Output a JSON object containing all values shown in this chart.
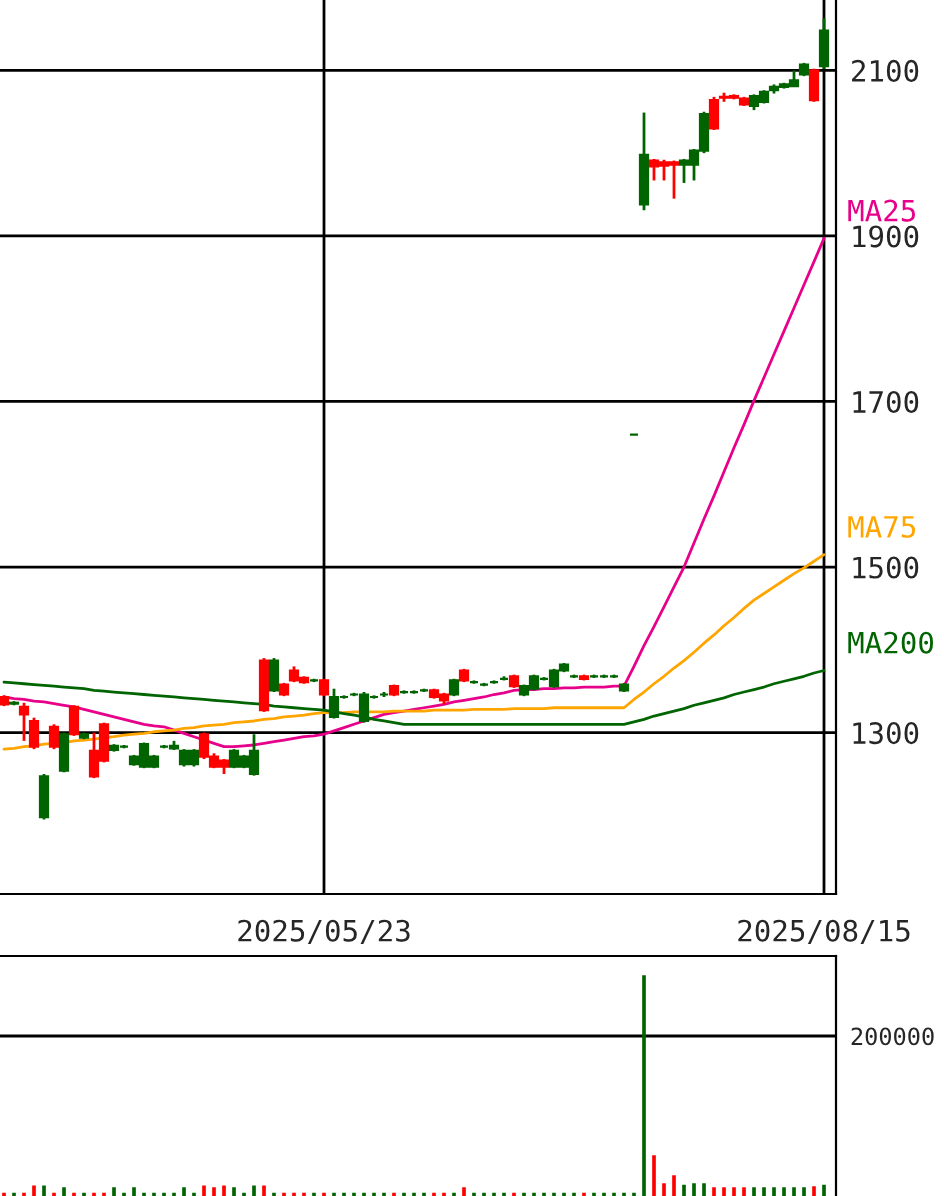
{
  "chart_data": [
    {
      "type": "candlestick",
      "categories": [
        null,
        null,
        null,
        null,
        null,
        null,
        null,
        null,
        null,
        null,
        null,
        null,
        null,
        null,
        null,
        null,
        null,
        null,
        null,
        null,
        null,
        null,
        null,
        null,
        null,
        null,
        null,
        null,
        null,
        null,
        null,
        null,
        "2025/05/23",
        null,
        null,
        null,
        null,
        null,
        null,
        null,
        null,
        null,
        null,
        null,
        null,
        null,
        null,
        null,
        null,
        null,
        null,
        null,
        null,
        null,
        null,
        null,
        null,
        null,
        null,
        null,
        null,
        null,
        null,
        null,
        null,
        null,
        null,
        null,
        null,
        null,
        null,
        null,
        null,
        null,
        null,
        null,
        null,
        null,
        null,
        null,
        null,
        null,
        "2025/08/15"
      ],
      "ohlc": [
        [
          1334,
          1345,
          1332,
          1343
        ],
        [
          1336,
          1338,
          1333,
          1335
        ],
        [
          1322,
          1336,
          1290,
          1331
        ],
        [
          1283,
          1318,
          1280,
          1314
        ],
        [
          1247,
          1250,
          1195,
          1198
        ],
        [
          1283,
          1310,
          1280,
          1307
        ],
        [
          1298,
          1300,
          1252,
          1254
        ],
        [
          1298,
          1333,
          1296,
          1331
        ],
        [
          1298,
          1300,
          1292,
          1294
        ],
        [
          1247,
          1300,
          1245,
          1278
        ],
        [
          1266,
          1312,
          1264,
          1310
        ],
        [
          1284,
          1286,
          1277,
          1279
        ],
        [
          1283,
          1285,
          1281,
          1283
        ],
        [
          1271,
          1273,
          1260,
          1262
        ],
        [
          1286,
          1288,
          1257,
          1259
        ],
        [
          1271,
          1273,
          1257,
          1259
        ],
        [
          1283,
          1285,
          1281,
          1283
        ],
        [
          1284,
          1290,
          1279,
          1281
        ],
        [
          1278,
          1280,
          1259,
          1262
        ],
        [
          1278,
          1280,
          1259,
          1262
        ],
        [
          1271,
          1300,
          1268,
          1298
        ],
        [
          1259,
          1275,
          1257,
          1271
        ],
        [
          1259,
          1268,
          1250,
          1266
        ],
        [
          1278,
          1280,
          1257,
          1259
        ],
        [
          1271,
          1273,
          1257,
          1259
        ],
        [
          1278,
          1298,
          1248,
          1250
        ],
        [
          1327,
          1390,
          1325,
          1387
        ],
        [
          1387,
          1390,
          1349,
          1351
        ],
        [
          1346,
          1360,
          1344,
          1358
        ],
        [
          1363,
          1380,
          1361,
          1375
        ],
        [
          1361,
          1368,
          1359,
          1366
        ],
        [
          1363,
          1365,
          1361,
          1363
        ],
        [
          1346,
          1365,
          1344,
          1363
        ],
        [
          1343,
          1353,
          1317,
          1319
        ],
        [
          1343,
          1345,
          1341,
          1343
        ],
        [
          1346,
          1348,
          1344,
          1346
        ],
        [
          1346,
          1349,
          1312,
          1314
        ],
        [
          1343,
          1345,
          1341,
          1343
        ],
        [
          1346,
          1349,
          1343,
          1346
        ],
        [
          1346,
          1358,
          1344,
          1356
        ],
        [
          1349,
          1351,
          1347,
          1349
        ],
        [
          1349,
          1351,
          1347,
          1349
        ],
        [
          1351,
          1353,
          1349,
          1351
        ],
        [
          1343,
          1353,
          1341,
          1351
        ],
        [
          1339,
          1348,
          1334,
          1346
        ],
        [
          1363,
          1365,
          1344,
          1346
        ],
        [
          1363,
          1377,
          1361,
          1375
        ],
        [
          1361,
          1363,
          1359,
          1361
        ],
        [
          1358,
          1360,
          1356,
          1358
        ],
        [
          1361,
          1363,
          1359,
          1361
        ],
        [
          1365,
          1368,
          1363,
          1365
        ],
        [
          1356,
          1370,
          1354,
          1368
        ],
        [
          1356,
          1358,
          1344,
          1346
        ],
        [
          1368,
          1370,
          1351,
          1353
        ],
        [
          1365,
          1367,
          1363,
          1365
        ],
        [
          1375,
          1377,
          1354,
          1356
        ],
        [
          1382,
          1384,
          1373,
          1375
        ],
        [
          1368,
          1370,
          1366,
          1368
        ],
        [
          1365,
          1370,
          1363,
          1368
        ],
        [
          1368,
          1370,
          1366,
          1368
        ],
        [
          1368,
          1370,
          1366,
          1368
        ],
        [
          1368,
          1370,
          1366,
          1368
        ],
        [
          1358,
          1360,
          1349,
          1351
        ],
        [
          1660,
          1660,
          1660,
          1660
        ],
        [
          1998,
          2049,
          1931,
          1938
        ],
        [
          1984,
          1993,
          1967,
          1991
        ],
        [
          1985,
          1992,
          1967,
          1989
        ],
        [
          1986,
          1991,
          1945,
          1989
        ],
        [
          1991,
          1993,
          1964,
          1986
        ],
        [
          2003,
          2005,
          1967,
          1986
        ],
        [
          2047,
          2050,
          2000,
          2003
        ],
        [
          2030,
          2068,
          2028,
          2064
        ],
        [
          2067,
          2073,
          2062,
          2068
        ],
        [
          2067,
          2071,
          2065,
          2069
        ],
        [
          2059,
          2068,
          2057,
          2066
        ],
        [
          2069,
          2071,
          2052,
          2057
        ],
        [
          2074,
          2076,
          2060,
          2062
        ],
        [
          2080,
          2083,
          2072,
          2076
        ],
        [
          2083,
          2085,
          2078,
          2080
        ],
        [
          2088,
          2100,
          2080,
          2081
        ],
        [
          2107,
          2109,
          2093,
          2095
        ],
        [
          2064,
          2102,
          2062,
          2100
        ],
        [
          2148,
          2163,
          2102,
          2105
        ]
      ],
      "colors": [
        "#ff0000",
        "#006400",
        "#ff0000",
        "#ff0000",
        "#006400",
        "#ff0000",
        "#006400",
        "#ff0000",
        "#006400",
        "#ff0000",
        "#ff0000",
        "#006400",
        "#006400",
        "#006400",
        "#006400",
        "#006400",
        "#006400",
        "#006400",
        "#006400",
        "#006400",
        "#ff0000",
        "#ff0000",
        "#ff0000",
        "#006400",
        "#006400",
        "#006400",
        "#ff0000",
        "#006400",
        "#ff0000",
        "#ff0000",
        "#ff0000",
        "#006400",
        "#ff0000",
        "#006400",
        "#006400",
        "#006400",
        "#006400",
        "#006400",
        "#006400",
        "#ff0000",
        "#006400",
        "#006400",
        "#006400",
        "#ff0000",
        "#ff0000",
        "#006400",
        "#ff0000",
        "#006400",
        "#006400",
        "#006400",
        "#006400",
        "#ff0000",
        "#006400",
        "#006400",
        "#006400",
        "#006400",
        "#006400",
        "#006400",
        "#ff0000",
        "#006400",
        "#006400",
        "#006400",
        "#006400",
        "#006400",
        "#006400",
        "#ff0000",
        "#ff0000",
        "#ff0000",
        "#006400",
        "#006400",
        "#006400",
        "#ff0000",
        "#ff0000",
        "#ff0000",
        "#ff0000",
        "#006400",
        "#006400",
        "#006400",
        "#006400",
        "#006400",
        "#006400",
        "#ff0000",
        "#006400"
      ],
      "series": [
        {
          "type": "line",
          "name": "MA25",
          "color": "#e6008a",
          "values": [
            1343,
            1341,
            1340,
            1338,
            1337,
            1335,
            1333,
            1331,
            1328,
            1325,
            1322,
            1319,
            1316,
            1313,
            1310,
            1308,
            1307,
            1303,
            1299,
            1295,
            1291,
            1287,
            1283,
            1283,
            1284,
            1285,
            1287,
            1289,
            1291,
            1293,
            1295,
            1296,
            1298,
            1302,
            1306,
            1310,
            1314,
            1318,
            1322,
            1324,
            1326,
            1328,
            1330,
            1332,
            1334,
            1337,
            1339,
            1341,
            1343,
            1346,
            1348,
            1351,
            1352,
            1352,
            1353,
            1353,
            1354,
            1354,
            1355,
            1355,
            1355,
            1356,
            1356,
            1380,
            1405,
            1428,
            1452,
            1476,
            1500,
            1529,
            1558,
            1586,
            1615,
            1644,
            1672,
            1701,
            1729,
            1757,
            1785,
            1813,
            1841,
            1869,
            1897
          ]
        },
        {
          "type": "line",
          "name": "MA75",
          "color": "#ffa500",
          "values": [
            1280,
            1281,
            1283,
            1284,
            1286,
            1287,
            1288,
            1290,
            1291,
            1292,
            1294,
            1295,
            1297,
            1298,
            1299,
            1301,
            1302,
            1303,
            1305,
            1306,
            1308,
            1309,
            1310,
            1312,
            1313,
            1314,
            1316,
            1317,
            1319,
            1320,
            1321,
            1323,
            1324,
            1324,
            1324,
            1325,
            1325,
            1325,
            1325,
            1326,
            1326,
            1326,
            1326,
            1327,
            1327,
            1327,
            1327,
            1328,
            1328,
            1328,
            1328,
            1329,
            1329,
            1329,
            1329,
            1330,
            1330,
            1330,
            1330,
            1330,
            1330,
            1330,
            1330,
            1340,
            1349,
            1359,
            1368,
            1378,
            1387,
            1397,
            1408,
            1418,
            1429,
            1439,
            1450,
            1460,
            1468,
            1476,
            1484,
            1492,
            1499,
            1507,
            1515
          ]
        },
        {
          "type": "line",
          "name": "MA200",
          "color": "#006400",
          "values": [
            1361,
            1360,
            1359,
            1358,
            1357,
            1356,
            1355,
            1354,
            1353,
            1351,
            1350,
            1349,
            1348,
            1347,
            1346,
            1345,
            1344,
            1343,
            1342,
            1341,
            1340,
            1339,
            1338,
            1337,
            1336,
            1335,
            1334,
            1332,
            1331,
            1330,
            1329,
            1328,
            1327,
            1325,
            1323,
            1321,
            1319,
            1316,
            1314,
            1312,
            1310,
            1310,
            1310,
            1310,
            1310,
            1310,
            1310,
            1310,
            1310,
            1310,
            1310,
            1310,
            1310,
            1310,
            1310,
            1310,
            1310,
            1310,
            1310,
            1310,
            1310,
            1310,
            1310,
            1313,
            1316,
            1320,
            1323,
            1326,
            1329,
            1333,
            1336,
            1339,
            1342,
            1346,
            1349,
            1352,
            1355,
            1359,
            1362,
            1365,
            1368,
            1372,
            1375
          ]
        }
      ],
      "ylim": [
        1105,
        2185
      ],
      "yticks": [
        1300,
        1500,
        1700,
        1900,
        2100
      ],
      "grid": true,
      "legend": false
    },
    {
      "type": "bar",
      "categories": [
        null,
        null,
        null,
        null,
        null,
        null,
        null,
        null,
        null,
        null,
        null,
        null,
        null,
        null,
        null,
        null,
        null,
        null,
        null,
        null,
        null,
        null,
        null,
        null,
        null,
        null,
        null,
        null,
        null,
        null,
        null,
        null,
        null,
        null,
        null,
        null,
        null,
        null,
        null,
        null,
        null,
        null,
        null,
        null,
        null,
        null,
        null,
        null,
        null,
        null,
        null,
        null,
        null,
        null,
        null,
        null,
        null,
        null,
        null,
        null,
        null,
        null,
        null,
        null,
        null,
        null,
        null,
        null,
        null,
        null,
        null,
        null,
        null,
        null,
        null,
        null,
        null,
        null,
        null,
        null,
        null,
        null,
        null
      ],
      "values": [
        3000,
        3000,
        3000,
        12000,
        12000,
        3000,
        10000,
        3000,
        3000,
        3000,
        3000,
        10000,
        3000,
        10000,
        3000,
        3000,
        3000,
        3000,
        10000,
        3000,
        12000,
        10000,
        12000,
        10000,
        3000,
        12000,
        12000,
        3000,
        3000,
        3000,
        3000,
        3000,
        3000,
        3000,
        3000,
        3000,
        3000,
        3000,
        3000,
        3000,
        3000,
        3000,
        3000,
        3000,
        3000,
        3000,
        10000,
        3000,
        3000,
        3000,
        3000,
        3000,
        3000,
        3000,
        3000,
        3000,
        3000,
        3000,
        3000,
        3000,
        3000,
        3000,
        3000,
        3000,
        275000,
        50000,
        15000,
        25000,
        13000,
        15000,
        15000,
        10000,
        10000,
        10000,
        10000,
        10000,
        10000,
        10000,
        10000,
        10000,
        10000,
        11000,
        13000
      ],
      "colors": [
        "#ff0000",
        "#006400",
        "#ff0000",
        "#ff0000",
        "#006400",
        "#ff0000",
        "#006400",
        "#ff0000",
        "#006400",
        "#ff0000",
        "#ff0000",
        "#006400",
        "#006400",
        "#006400",
        "#006400",
        "#006400",
        "#006400",
        "#006400",
        "#006400",
        "#006400",
        "#ff0000",
        "#ff0000",
        "#ff0000",
        "#006400",
        "#006400",
        "#006400",
        "#ff0000",
        "#006400",
        "#ff0000",
        "#ff0000",
        "#ff0000",
        "#006400",
        "#ff0000",
        "#006400",
        "#006400",
        "#006400",
        "#006400",
        "#006400",
        "#006400",
        "#ff0000",
        "#006400",
        "#006400",
        "#006400",
        "#ff0000",
        "#ff0000",
        "#006400",
        "#ff0000",
        "#006400",
        "#006400",
        "#006400",
        "#006400",
        "#ff0000",
        "#006400",
        "#006400",
        "#006400",
        "#006400",
        "#006400",
        "#006400",
        "#ff0000",
        "#006400",
        "#006400",
        "#006400",
        "#006400",
        "#006400",
        "#006400",
        "#ff0000",
        "#ff0000",
        "#ff0000",
        "#006400",
        "#006400",
        "#006400",
        "#ff0000",
        "#ff0000",
        "#ff0000",
        "#ff0000",
        "#006400",
        "#006400",
        "#006400",
        "#006400",
        "#006400",
        "#006400",
        "#ff0000",
        "#006400"
      ],
      "ylim": [
        0,
        300000
      ],
      "yticks": [
        200000
      ],
      "grid": "y",
      "tick_labels": "y"
    }
  ]
}
